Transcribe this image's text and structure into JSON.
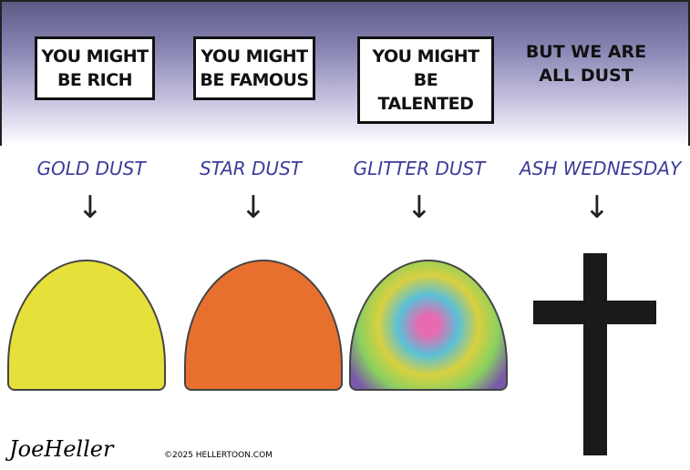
{
  "panels": [
    {
      "caption": "YOU MIGHT BE RICH",
      "label": "GOLD DUST",
      "pile_color": "#e6e13a"
    },
    {
      "caption": "YOU MIGHT BE FAMOUS",
      "label": "STAR DUST",
      "pile_color": "#e8702e"
    },
    {
      "caption": "YOU MIGHT BE TALENTED",
      "label": "GLITTER DUST",
      "pile_color": "#7a9a6a"
    },
    {
      "caption": "BUT WE ARE ALL DUST",
      "label": "ASH WEDNESDAY"
    }
  ],
  "arrow": "↓",
  "signature": "JoeHeller",
  "copyright": "©2025 HELLERTOON.COM"
}
